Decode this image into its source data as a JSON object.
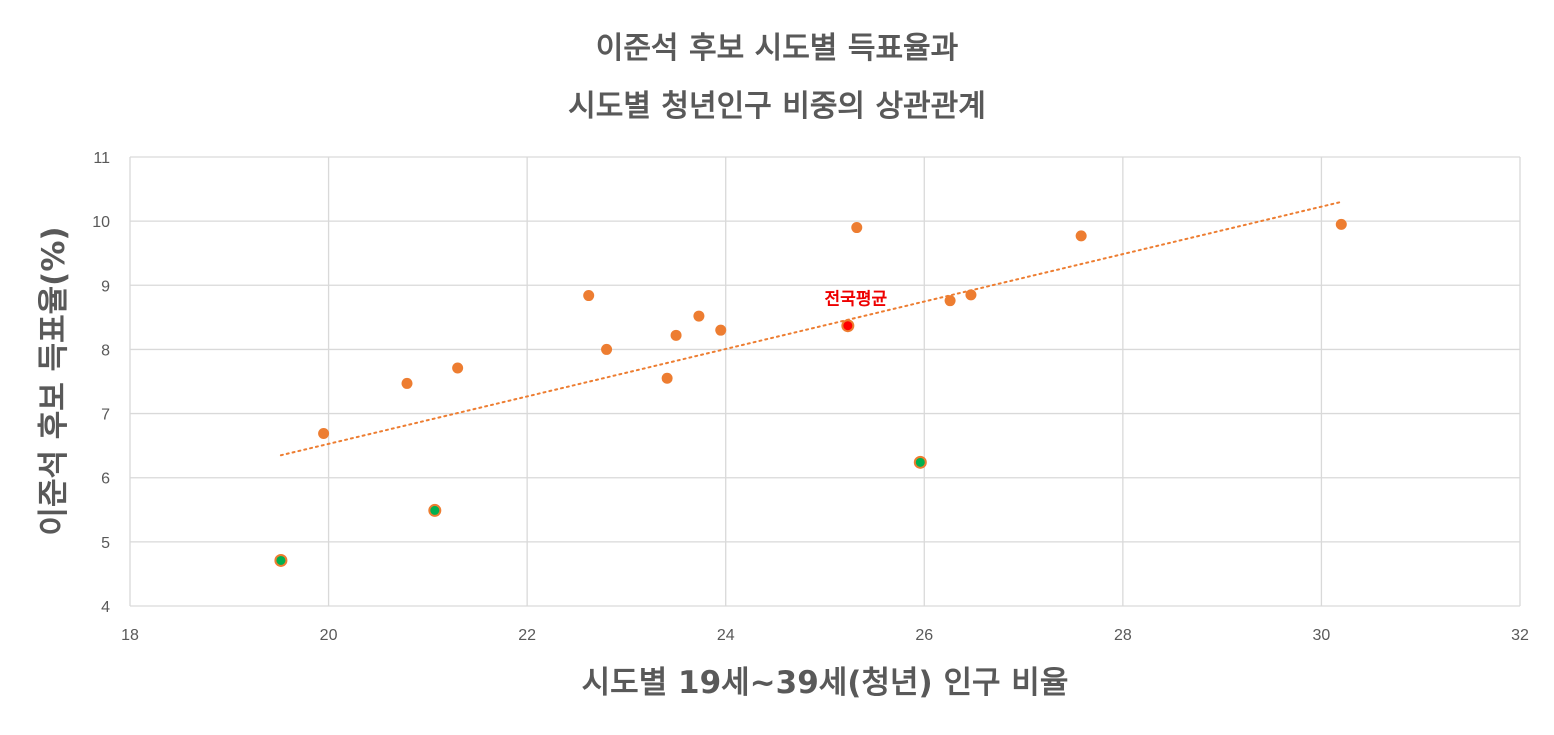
{
  "chart_data": {
    "type": "scatter",
    "title_lines": [
      "이준석 후보 시도별 득표율과",
      "시도별 청년인구 비중의 상관관계"
    ],
    "xlabel": "시도별 19세~39세(청년) 인구 비율",
    "ylabel": "이준석 후보 득표율(%)",
    "xlim": [
      18,
      32
    ],
    "ylim": [
      4,
      11
    ],
    "xticks": [
      "18",
      "20",
      "22",
      "24",
      "26",
      "28",
      "30",
      "32"
    ],
    "yticks": [
      "4",
      "5",
      "6",
      "7",
      "8",
      "9",
      "10",
      "11"
    ],
    "grid": true,
    "colors": {
      "point": "#ed7d31",
      "highlight_fill": "#00b050",
      "average_fill": "#ff0000",
      "trendline": "#ed7d31",
      "grid": "#d9d9d9",
      "text": "#595959"
    },
    "points": [
      {
        "x": 19.95,
        "y": 6.69
      },
      {
        "x": 20.79,
        "y": 7.47
      },
      {
        "x": 21.3,
        "y": 7.71
      },
      {
        "x": 22.62,
        "y": 8.84
      },
      {
        "x": 22.8,
        "y": 8.0
      },
      {
        "x": 23.41,
        "y": 7.55
      },
      {
        "x": 23.5,
        "y": 8.22
      },
      {
        "x": 23.73,
        "y": 8.52
      },
      {
        "x": 23.95,
        "y": 8.3
      },
      {
        "x": 25.32,
        "y": 9.9
      },
      {
        "x": 26.26,
        "y": 8.76
      },
      {
        "x": 26.47,
        "y": 8.85
      },
      {
        "x": 27.58,
        "y": 9.77
      },
      {
        "x": 30.2,
        "y": 9.95
      }
    ],
    "highlighted_points": [
      {
        "x": 19.52,
        "y": 4.71
      },
      {
        "x": 21.07,
        "y": 5.49
      },
      {
        "x": 25.96,
        "y": 6.24
      }
    ],
    "average_point": {
      "x": 25.23,
      "y": 8.37,
      "label": "전국평균"
    },
    "trendline": {
      "style": "dotted",
      "x_start": 19.52,
      "x_end": 30.2,
      "y_start": 6.35,
      "y_end": 10.3
    }
  }
}
